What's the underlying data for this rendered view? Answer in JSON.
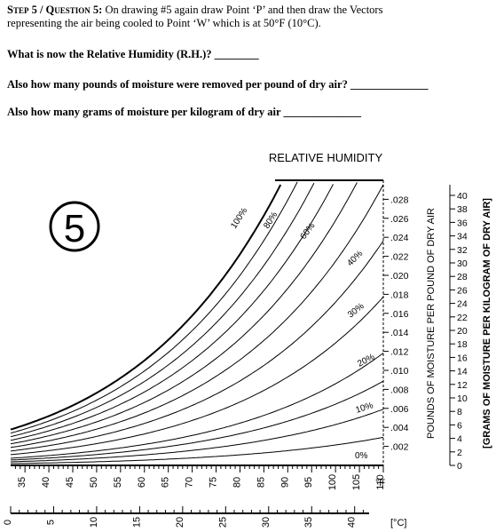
{
  "header": {
    "step_label": "Step 5 / Question 5:",
    "instruction_line1": "On drawing #5 again draw Point ‘P’ and then draw the Vectors",
    "instruction_line2": "representing the air being cooled to Point ‘W’ which is at 50°F (10°C)."
  },
  "questions": {
    "q1": "What is now the Relative Humidity (R.H.)? ________",
    "q2": "Also how many pounds of moisture were removed per pound of dry air? ______________",
    "q3": "Also how many grams of moisture per kilogram of dry air ______________"
  },
  "chart": {
    "title": "RELATIVE HUMIDITY",
    "drawing_number": "5",
    "rh_labels": [
      "100%",
      "80%",
      "60%",
      "40%",
      "30%",
      "20%",
      "10%",
      "0%"
    ],
    "rh_fractions": [
      1.0,
      0.9,
      0.8,
      0.7,
      0.6,
      0.5,
      0.4,
      0.3,
      0.2,
      0.15,
      0.1,
      0.05
    ],
    "pounds_axis_label": "POUNDS OF MOISTURE PER POUND OF DRY AIR",
    "grams_axis_label": "[GRAMS OF MOISTURE PER KILOGRAM OF DRY AIR]",
    "pounds_ticks": [
      ".028",
      ".026",
      ".024",
      ".022",
      ".020",
      ".018",
      ".016",
      ".014",
      ".012",
      ".010",
      ".008",
      ".006",
      ".004",
      ".002"
    ],
    "grams_ticks": [
      "40",
      "38",
      "36",
      "34",
      "32",
      "30",
      "28",
      "26",
      "24",
      "22",
      "20",
      "18",
      "16",
      "14",
      "12",
      "10",
      "8",
      "6",
      "4",
      "2",
      "0"
    ],
    "f_ticks": [
      "35",
      "40",
      "45",
      "50",
      "55",
      "60",
      "65",
      "70",
      "75",
      "80",
      "85",
      "90",
      "95",
      "100",
      "105",
      "110"
    ],
    "f_unit": "°F",
    "c_ticks": [
      "0",
      "5",
      "10",
      "15",
      "20",
      "25",
      "30",
      "35",
      "40"
    ],
    "c_unit": "[°C]",
    "f_min": 32,
    "f_max": 110,
    "w_max": 0.03
  }
}
